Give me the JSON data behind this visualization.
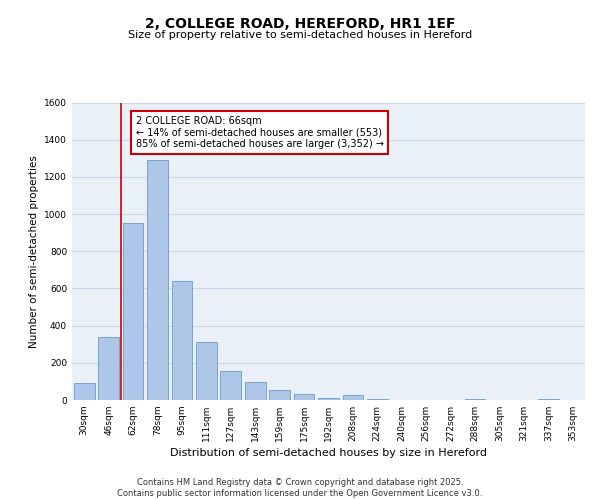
{
  "title": "2, COLLEGE ROAD, HEREFORD, HR1 1EF",
  "subtitle": "Size of property relative to semi-detached houses in Hereford",
  "xlabel": "Distribution of semi-detached houses by size in Hereford",
  "ylabel": "Number of semi-detached properties",
  "categories": [
    "30sqm",
    "46sqm",
    "62sqm",
    "78sqm",
    "95sqm",
    "111sqm",
    "127sqm",
    "143sqm",
    "159sqm",
    "175sqm",
    "192sqm",
    "208sqm",
    "224sqm",
    "240sqm",
    "256sqm",
    "272sqm",
    "288sqm",
    "305sqm",
    "321sqm",
    "337sqm",
    "353sqm"
  ],
  "values": [
    90,
    340,
    950,
    1290,
    640,
    310,
    155,
    95,
    55,
    30,
    10,
    25,
    5,
    0,
    0,
    0,
    5,
    0,
    0,
    5,
    0
  ],
  "bar_color": "#aec6e8",
  "bar_edge_color": "#5a8fc0",
  "red_line_color": "#cc0000",
  "annotation_text": "2 COLLEGE ROAD: 66sqm\n← 14% of semi-detached houses are smaller (553)\n85% of semi-detached houses are larger (3,352) →",
  "annotation_box_color": "#ffffff",
  "annotation_box_edge": "#cc0000",
  "ylim": [
    0,
    1600
  ],
  "yticks": [
    0,
    200,
    400,
    600,
    800,
    1000,
    1200,
    1400,
    1600
  ],
  "grid_color": "#c8d8e8",
  "background_color": "#eaf0f8",
  "footer": "Contains HM Land Registry data © Crown copyright and database right 2025.\nContains public sector information licensed under the Open Government Licence v3.0.",
  "title_fontsize": 10,
  "subtitle_fontsize": 8,
  "ylabel_fontsize": 7.5,
  "xlabel_fontsize": 8,
  "tick_fontsize": 6.5,
  "annotation_fontsize": 7,
  "footer_fontsize": 6
}
